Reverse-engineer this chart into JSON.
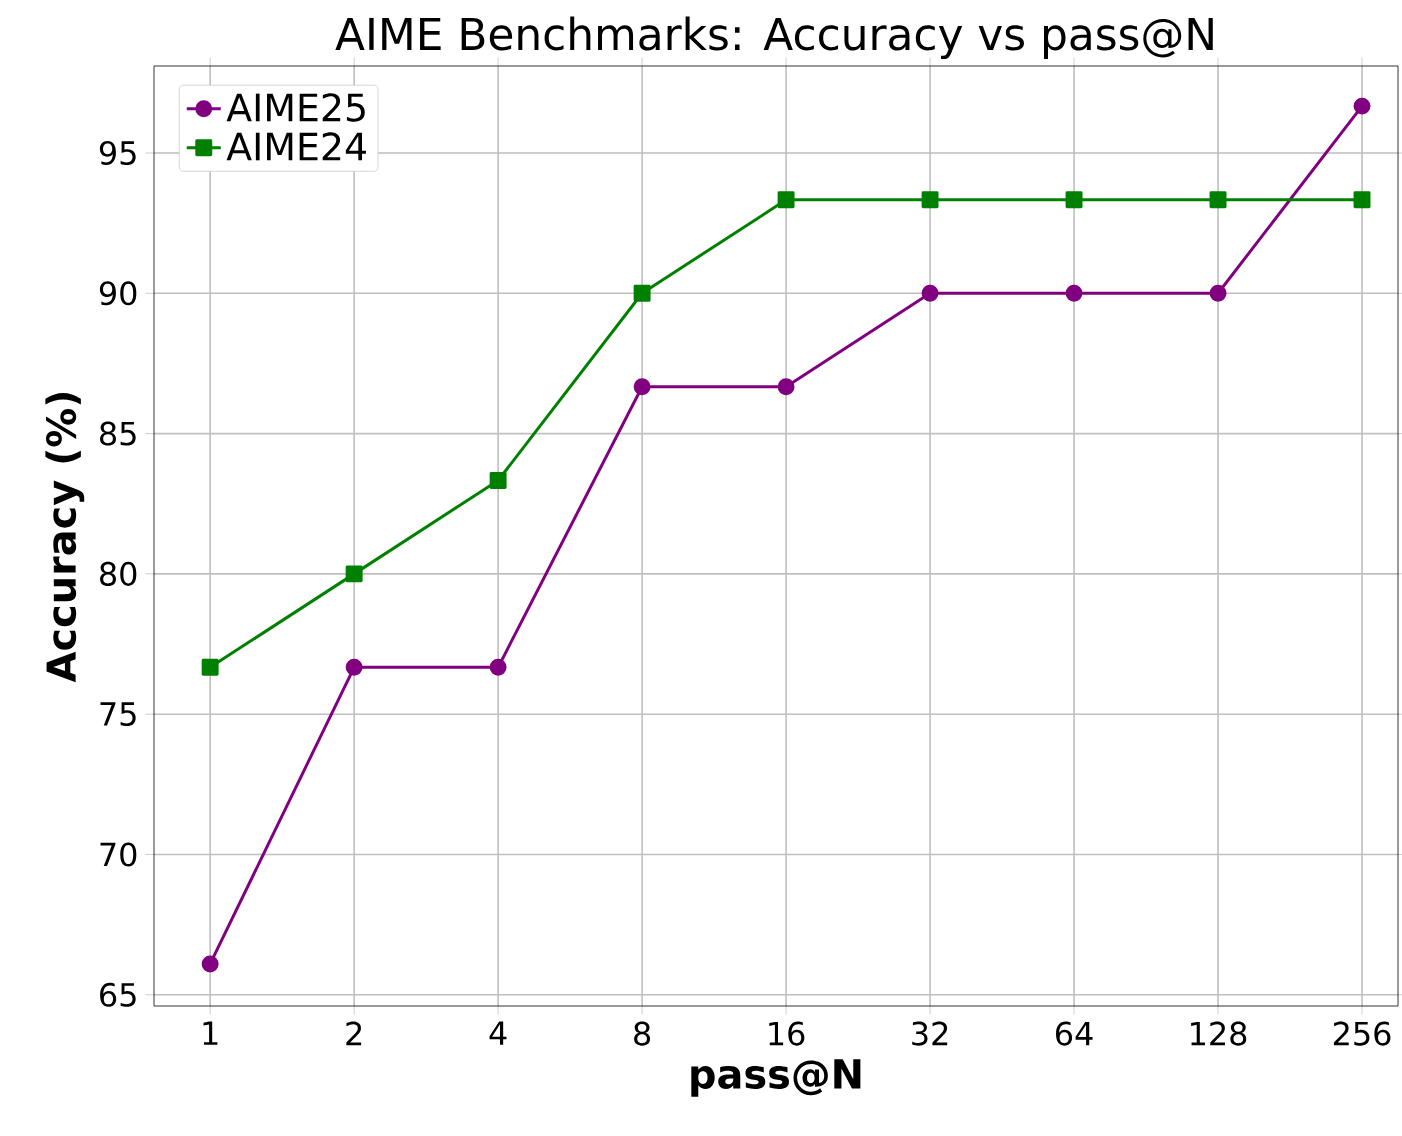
{
  "chart_data": {
    "type": "line",
    "title": "AIME Benchmarks: Accuracy vs pass@N",
    "xlabel": "pass@N",
    "ylabel": "Accuracy (%)",
    "categories": [
      "1",
      "2",
      "4",
      "8",
      "16",
      "32",
      "64",
      "128",
      "256"
    ],
    "series": [
      {
        "name": "AIME25",
        "color": "#800080",
        "marker": "circle",
        "values": [
          66.1,
          76.67,
          76.67,
          86.67,
          86.67,
          90,
          90,
          90,
          96.67
        ]
      },
      {
        "name": "AIME24",
        "color": "#008000",
        "marker": "square",
        "values": [
          76.67,
          80,
          83.33,
          90,
          93.33,
          93.33,
          93.33,
          93.33,
          93.33
        ]
      }
    ],
    "ylim": [
      64.6,
      98.1
    ],
    "yticks": [
      65,
      70,
      75,
      80,
      85,
      90,
      95
    ],
    "grid": true,
    "legend": "top left",
    "line_style": "solid"
  }
}
